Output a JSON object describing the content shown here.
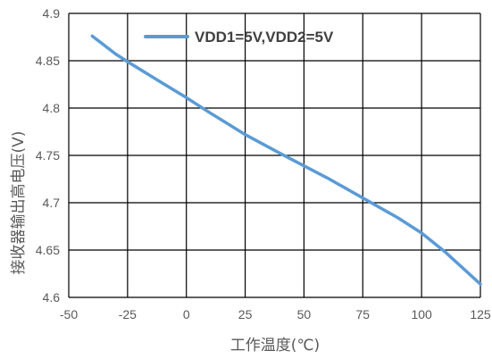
{
  "chart_data": {
    "type": "line",
    "xlabel": "工作温度(℃)",
    "ylabel": "接收器输出高电压(V)",
    "xlim": [
      -50,
      125
    ],
    "ylim": [
      4.6,
      4.9
    ],
    "x_ticks": [
      "-50",
      "-25",
      "0",
      "25",
      "50",
      "75",
      "100",
      "125"
    ],
    "y_ticks": [
      "4.6",
      "4.65",
      "4.7",
      "4.75",
      "4.8",
      "4.85",
      "4.9"
    ],
    "grid": true,
    "legend_position": "top-right",
    "series": [
      {
        "name": "VDD1=5V,VDD2=5V",
        "color": "#5b9bd5",
        "x": [
          -40,
          -30,
          -25,
          -10,
          0,
          10,
          25,
          40,
          50,
          60,
          75,
          90,
          100,
          110,
          125
        ],
        "y": [
          4.876,
          4.857,
          4.849,
          4.826,
          4.811,
          4.795,
          4.772,
          4.752,
          4.739,
          4.726,
          4.705,
          4.684,
          4.668,
          4.648,
          4.614
        ]
      }
    ]
  }
}
